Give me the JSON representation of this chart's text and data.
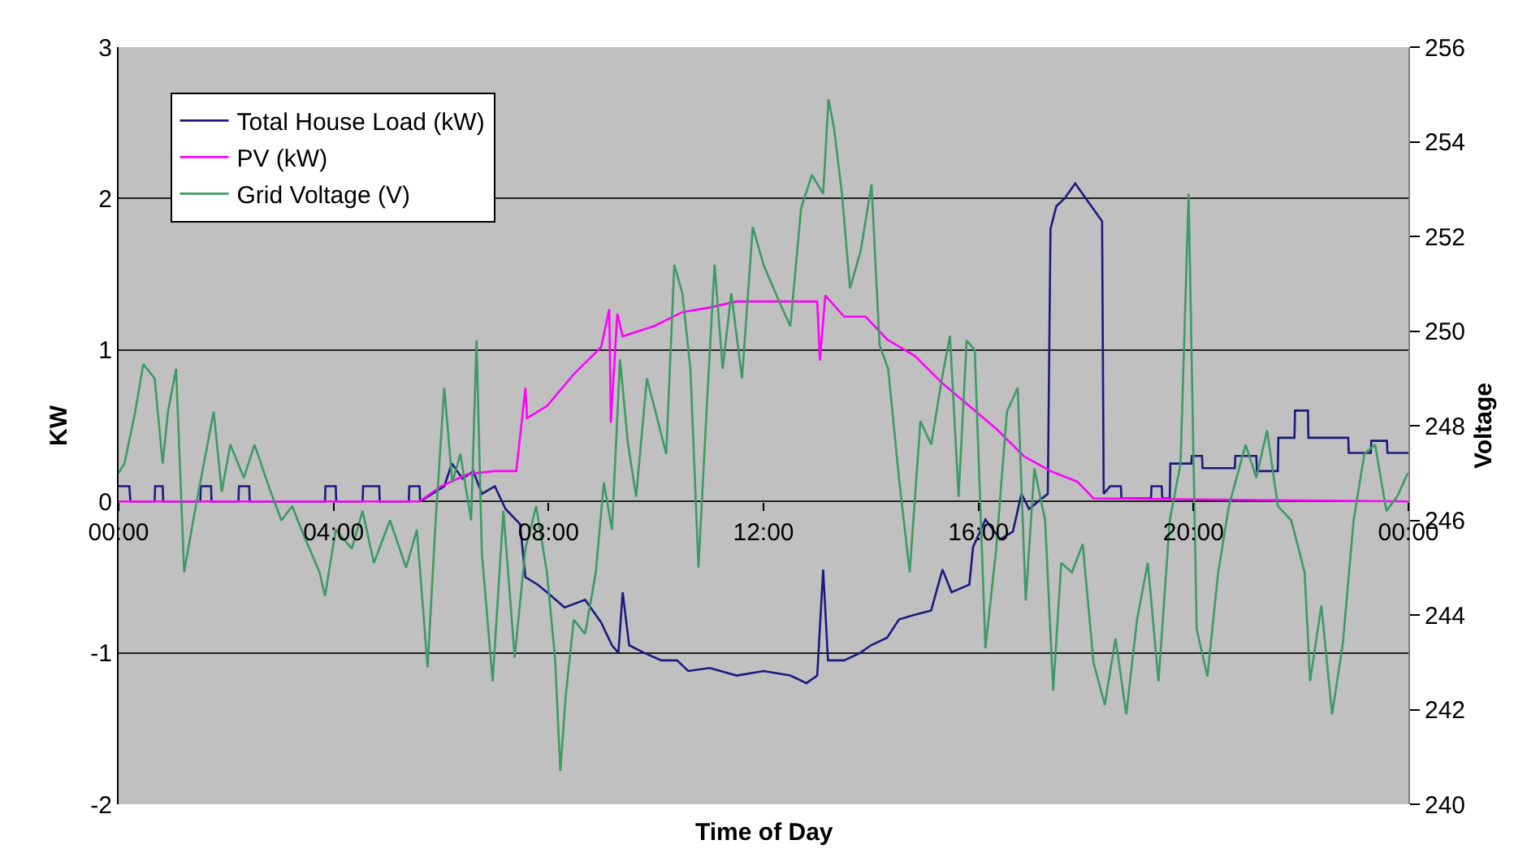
{
  "chart_data": {
    "type": "line",
    "xlabel": "Time of Day",
    "ylabel": "KW",
    "y2label": "Voltage",
    "xlim": [
      0,
      24
    ],
    "xticks": [
      {
        "value": 0,
        "label": "00:00"
      },
      {
        "value": 4,
        "label": "04:00"
      },
      {
        "value": 8,
        "label": "08:00"
      },
      {
        "value": 12,
        "label": "12:00"
      },
      {
        "value": 16,
        "label": "16:00"
      },
      {
        "value": 20,
        "label": "20:00"
      },
      {
        "value": 24,
        "label": "00:00"
      }
    ],
    "ylim": [
      -2,
      3
    ],
    "yticks": [
      -2,
      -1,
      0,
      1,
      2,
      3
    ],
    "y2lim": [
      240,
      256
    ],
    "y2ticks": [
      240,
      242,
      244,
      246,
      248,
      250,
      252,
      254,
      256
    ],
    "grid": "y",
    "legend": "top left",
    "marker": "none",
    "line_style": "solid",
    "series": [
      {
        "name": "Total House Load (kW)",
        "color": "#1a1a80",
        "x": [
          0,
          0.2,
          0.22,
          0.67,
          0.68,
          0.82,
          0.83,
          1.52,
          1.53,
          1.72,
          1.73,
          2.23,
          2.24,
          2.43,
          2.44,
          3.84,
          3.85,
          4.04,
          4.05,
          4.54,
          4.55,
          4.85,
          4.86,
          5.4,
          5.41,
          5.6,
          5.61,
          6.06,
          6.2,
          6.4,
          6.6,
          6.76,
          7.0,
          7.2,
          7.47,
          7.57,
          7.8,
          7.97,
          8.3,
          8.68,
          8.98,
          9.18,
          9.3,
          9.38,
          9.5,
          9.78,
          10.1,
          10.39,
          10.6,
          11.0,
          11.5,
          12.0,
          12.5,
          12.8,
          13.0,
          13.11,
          13.2,
          13.5,
          13.8,
          14.0,
          14.3,
          14.52,
          14.8,
          15.12,
          15.33,
          15.5,
          15.83,
          15.9,
          16.13,
          16.4,
          16.64,
          16.8,
          16.94,
          17.29,
          17.34,
          17.45,
          17.6,
          17.8,
          18.0,
          18.3,
          18.33,
          18.45,
          18.65,
          18.66,
          19.21,
          19.22,
          19.41,
          19.42,
          19.56,
          19.57,
          19.96,
          19.97,
          20.16,
          20.17,
          20.77,
          20.78,
          21.17,
          21.18,
          21.57,
          21.58,
          21.88,
          21.89,
          22.13,
          22.14,
          22.88,
          22.89,
          23.3,
          23.31,
          23.6,
          23.61,
          24
        ],
        "values": [
          0.1,
          0.1,
          0,
          0,
          0.1,
          0.1,
          0,
          0,
          0.1,
          0.1,
          0,
          0,
          0.1,
          0.1,
          0,
          0,
          0.1,
          0.1,
          0,
          0,
          0.1,
          0.1,
          0,
          0,
          0.1,
          0.1,
          0,
          0.1,
          0.25,
          0.15,
          0.2,
          0.05,
          0.1,
          -0.05,
          -0.15,
          -0.5,
          -0.55,
          -0.6,
          -0.7,
          -0.65,
          -0.8,
          -0.95,
          -1.0,
          -0.6,
          -0.95,
          -1.0,
          -1.05,
          -1.05,
          -1.12,
          -1.1,
          -1.15,
          -1.12,
          -1.15,
          -1.2,
          -1.15,
          -0.45,
          -1.05,
          -1.05,
          -1.0,
          -0.95,
          -0.9,
          -0.78,
          -0.75,
          -0.72,
          -0.45,
          -0.6,
          -0.55,
          -0.3,
          -0.12,
          -0.25,
          -0.2,
          0.05,
          -0.05,
          0.05,
          1.8,
          1.95,
          2.0,
          2.1,
          2.0,
          1.85,
          0.05,
          0.1,
          0.1,
          0.02,
          0.02,
          0.1,
          0.1,
          0.02,
          0.02,
          0.25,
          0.25,
          0.3,
          0.3,
          0.22,
          0.22,
          0.3,
          0.3,
          0.2,
          0.2,
          0.42,
          0.42,
          0.6,
          0.6,
          0.42,
          0.42,
          0.32,
          0.32,
          0.4,
          0.4,
          0.32,
          0.32
        ]
      },
      {
        "name": "PV (kW)",
        "color": "#ff00ff",
        "x": [
          0,
          5.6,
          6.0,
          6.5,
          7.0,
          7.4,
          7.57,
          7.6,
          7.97,
          8.47,
          8.98,
          9.13,
          9.16,
          9.28,
          9.38,
          9.98,
          10.49,
          10.99,
          11.5,
          12.5,
          13.0,
          13.05,
          13.15,
          13.5,
          13.9,
          14.3,
          14.82,
          15.33,
          15.83,
          16.33,
          16.84,
          17.34,
          17.84,
          18.14,
          24
        ],
        "values": [
          0,
          0,
          0.1,
          0.18,
          0.2,
          0.2,
          0.75,
          0.55,
          0.63,
          0.84,
          1.02,
          1.27,
          0.52,
          1.24,
          1.09,
          1.16,
          1.25,
          1.28,
          1.32,
          1.32,
          1.32,
          0.93,
          1.36,
          1.22,
          1.22,
          1.07,
          0.96,
          0.78,
          0.63,
          0.48,
          0.3,
          0.2,
          0.13,
          0.02,
          0
        ]
      },
      {
        "name": "Grid Voltage (V)",
        "color": "#3c9a64",
        "axis": "y2",
        "x": [
          0,
          0.11,
          0.31,
          0.46,
          0.67,
          0.82,
          0.92,
          1.07,
          1.22,
          1.42,
          1.62,
          1.77,
          1.92,
          2.08,
          2.33,
          2.53,
          2.83,
          3.03,
          3.23,
          3.44,
          3.74,
          3.84,
          4.04,
          4.34,
          4.54,
          4.75,
          5.05,
          5.35,
          5.55,
          5.75,
          5.9,
          6.06,
          6.21,
          6.36,
          6.56,
          6.66,
          6.76,
          6.96,
          7.16,
          7.37,
          7.57,
          7.77,
          7.97,
          8.12,
          8.22,
          8.32,
          8.47,
          8.68,
          8.88,
          9.03,
          9.18,
          9.33,
          9.48,
          9.63,
          9.83,
          9.99,
          10.19,
          10.34,
          10.49,
          10.64,
          10.79,
          10.94,
          11.09,
          11.24,
          11.4,
          11.6,
          11.8,
          12.0,
          12.3,
          12.5,
          12.7,
          12.9,
          13.11,
          13.21,
          13.31,
          13.46,
          13.61,
          13.81,
          14.01,
          14.16,
          14.32,
          14.52,
          14.72,
          14.92,
          15.12,
          15.32,
          15.47,
          15.63,
          15.78,
          15.93,
          16.13,
          16.33,
          16.53,
          16.73,
          16.88,
          17.04,
          17.24,
          17.39,
          17.54,
          17.74,
          17.94,
          18.14,
          18.35,
          18.55,
          18.75,
          18.95,
          19.15,
          19.35,
          19.56,
          19.76,
          19.91,
          20.06,
          20.26,
          20.46,
          20.66,
          20.97,
          21.17,
          21.37,
          21.57,
          21.82,
          22.07,
          22.17,
          22.38,
          22.58,
          22.78,
          22.98,
          23.18,
          23.38,
          23.59,
          23.79,
          23.99
        ],
        "values": [
          247.0,
          247.2,
          248.3,
          249.3,
          249.0,
          247.2,
          248.3,
          249.2,
          244.9,
          246.2,
          247.4,
          248.3,
          246.6,
          247.6,
          246.9,
          247.6,
          246.6,
          246.0,
          246.3,
          245.7,
          244.9,
          244.4,
          245.8,
          245.4,
          246.2,
          245.1,
          246.0,
          245.0,
          245.8,
          242.9,
          246.0,
          248.8,
          246.8,
          247.4,
          246.0,
          249.8,
          245.3,
          242.6,
          246.2,
          243.1,
          245.4,
          246.3,
          244.9,
          243.1,
          240.7,
          242.3,
          243.9,
          243.6,
          244.9,
          246.8,
          245.8,
          249.4,
          247.6,
          246.5,
          249.0,
          248.3,
          247.4,
          251.4,
          250.8,
          249.2,
          245.0,
          248.3,
          251.4,
          249.2,
          250.8,
          249.0,
          252.2,
          251.4,
          250.6,
          250.1,
          252.6,
          253.3,
          252.9,
          254.9,
          254.3,
          252.9,
          250.9,
          251.7,
          253.1,
          249.7,
          249.2,
          246.9,
          244.9,
          248.1,
          247.6,
          249.0,
          249.9,
          246.5,
          249.8,
          249.6,
          243.3,
          245.4,
          248.3,
          248.8,
          244.3,
          247.1,
          246.0,
          242.4,
          245.1,
          244.9,
          245.5,
          243.0,
          242.1,
          243.5,
          241.9,
          243.9,
          245.1,
          242.6,
          246.0,
          247.2,
          252.9,
          243.7,
          242.7,
          244.9,
          246.3,
          247.6,
          246.9,
          247.9,
          246.3,
          246.0,
          244.9,
          242.6,
          244.2,
          241.9,
          243.4,
          246.0,
          247.4,
          247.6,
          246.2,
          246.5,
          247.0
        ]
      }
    ]
  }
}
